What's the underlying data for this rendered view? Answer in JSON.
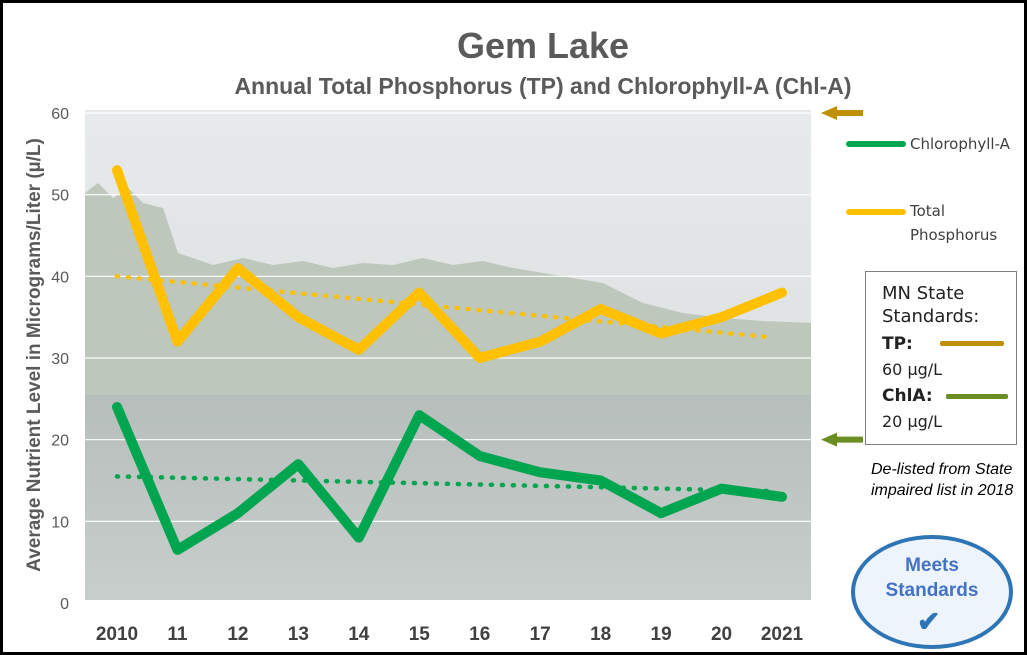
{
  "title": "Gem Lake",
  "subtitle": "Annual Total Phosphorus (TP) and Chlorophyll-A (Chl-A)",
  "chart_data": {
    "type": "line",
    "categories": [
      "2010",
      "11",
      "12",
      "13",
      "14",
      "15",
      "16",
      "17",
      "18",
      "19",
      "20",
      "2021"
    ],
    "ylabel": "Average Nutrient Level in Micrograms/Liter (µ/L)",
    "ylim": [
      0,
      60
    ],
    "yticks": [
      0,
      10,
      20,
      30,
      40,
      50,
      60
    ],
    "grid": true,
    "legend_position": "right",
    "series": [
      {
        "name": "Chlorophyll-A",
        "color": "#00a550",
        "values": [
          24,
          6.5,
          11,
          17,
          8,
          23,
          18,
          16,
          15,
          11,
          14,
          13
        ]
      },
      {
        "name": "Total Phosphorus",
        "color": "#ffc000",
        "values": [
          53,
          32,
          41,
          35,
          31,
          38,
          30,
          32,
          36,
          33,
          35,
          38
        ]
      }
    ],
    "trendlines": [
      {
        "series": "Total Phosphorus",
        "style": "dotted",
        "color": "#ffc000",
        "start": 40,
        "end": 32.5
      },
      {
        "series": "Chlorophyll-A",
        "style": "dotted",
        "color": "#00a550",
        "start": 15.5,
        "end": 13.7
      }
    ],
    "standards_markers": [
      {
        "label": "TP",
        "value": 60,
        "color": "#bf9000"
      },
      {
        "label": "ChlA",
        "value": 20,
        "color": "#6b8e23"
      }
    ]
  },
  "legend": {
    "chla_label": "Chlorophyll-A",
    "tp_label": "Total Phosphorus"
  },
  "standards": {
    "title": "MN State Standards:",
    "tp_label": "TP:",
    "tp_value": "60 µg/L",
    "chla_label": "ChlA:",
    "chla_value": "20 µg/L",
    "tp_color": "#bf9000",
    "chla_color": "#6b8e23"
  },
  "note": "De-listed from State impaired list in 2018",
  "badge": {
    "text": "Meets Standards",
    "check": "✔"
  }
}
